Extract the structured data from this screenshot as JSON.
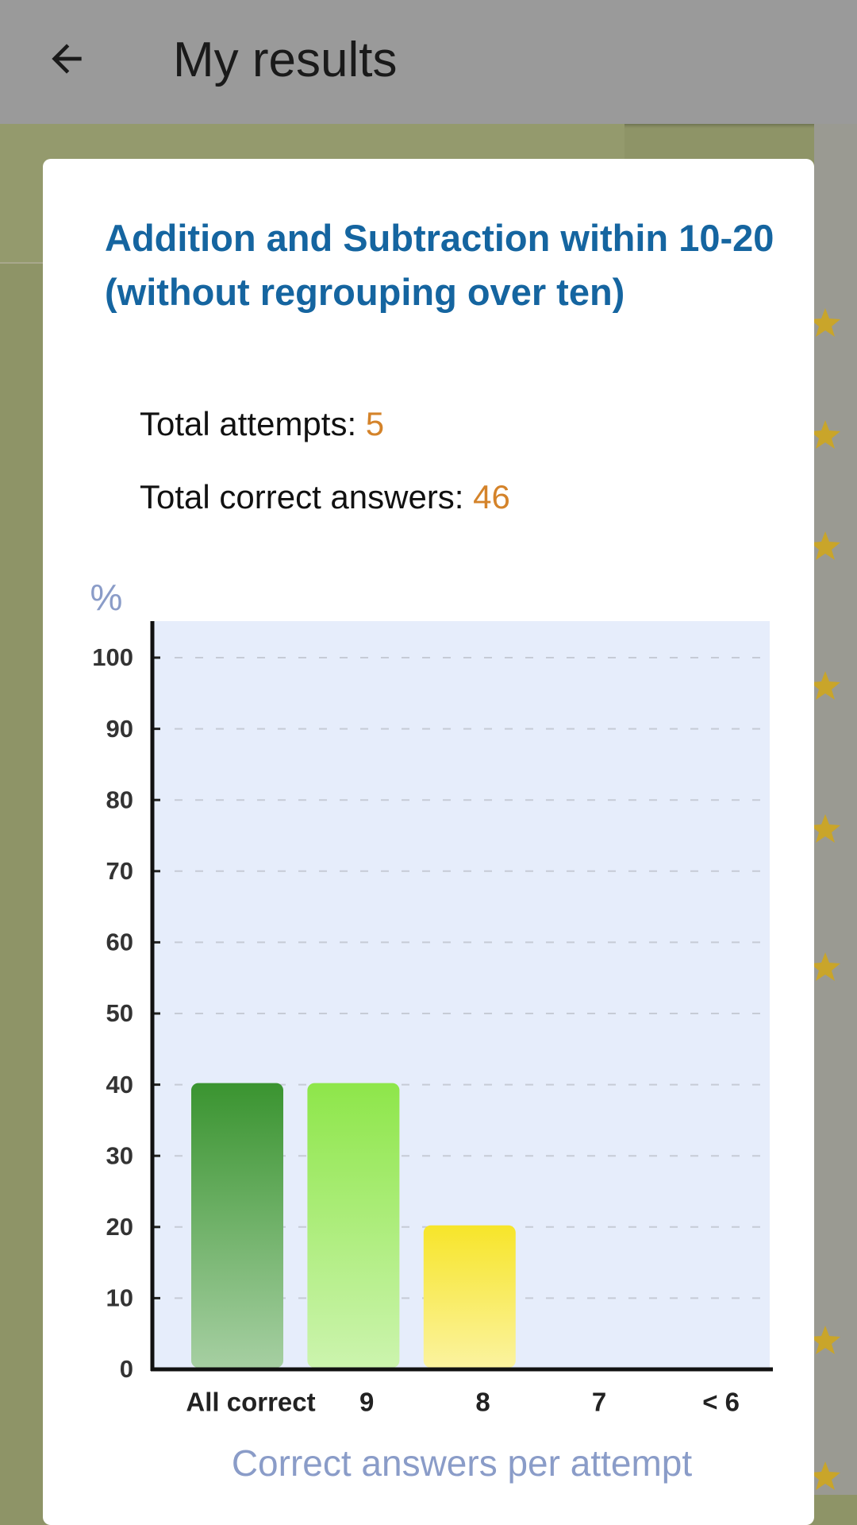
{
  "header": {
    "title": "My results"
  },
  "dialog": {
    "title": "Addition and Subtraction within 10-20 (without regrouping over ten)",
    "stats": [
      {
        "label": "Total attempts:",
        "value": 5
      },
      {
        "label": "Total correct answers:",
        "value": 46
      }
    ]
  },
  "chart_data": {
    "type": "bar",
    "ylabel": "%",
    "xlabel": "Correct answers per attempt",
    "categories": [
      "All correct",
      "9",
      "8",
      "7",
      "< 6"
    ],
    "values": [
      40,
      40,
      20,
      0,
      0
    ],
    "colors": [
      "#3a9430",
      "#8ee64a",
      "#f7e52a",
      "#f0a030",
      "#e04030"
    ],
    "ylim": [
      0,
      100
    ],
    "yticks": [
      0,
      10,
      20,
      30,
      40,
      50,
      60,
      70,
      80,
      90,
      100
    ],
    "grid": true
  }
}
